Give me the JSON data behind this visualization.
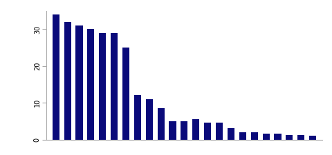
{
  "values": [
    34,
    32,
    31,
    30,
    29,
    29,
    25,
    12,
    11,
    8.5,
    5,
    5,
    5.5,
    4.5,
    4.5,
    3,
    2,
    2,
    1.5,
    1.5,
    1.2,
    1.2,
    1
  ],
  "bar_color": "#0a0a7a",
  "background_color": "#ffffff",
  "ylim": [
    0,
    35
  ],
  "yticks": [
    0,
    10,
    20,
    30
  ],
  "bar_width": 0.6,
  "figsize": [
    4.8,
    2.25
  ],
  "dpi": 100
}
